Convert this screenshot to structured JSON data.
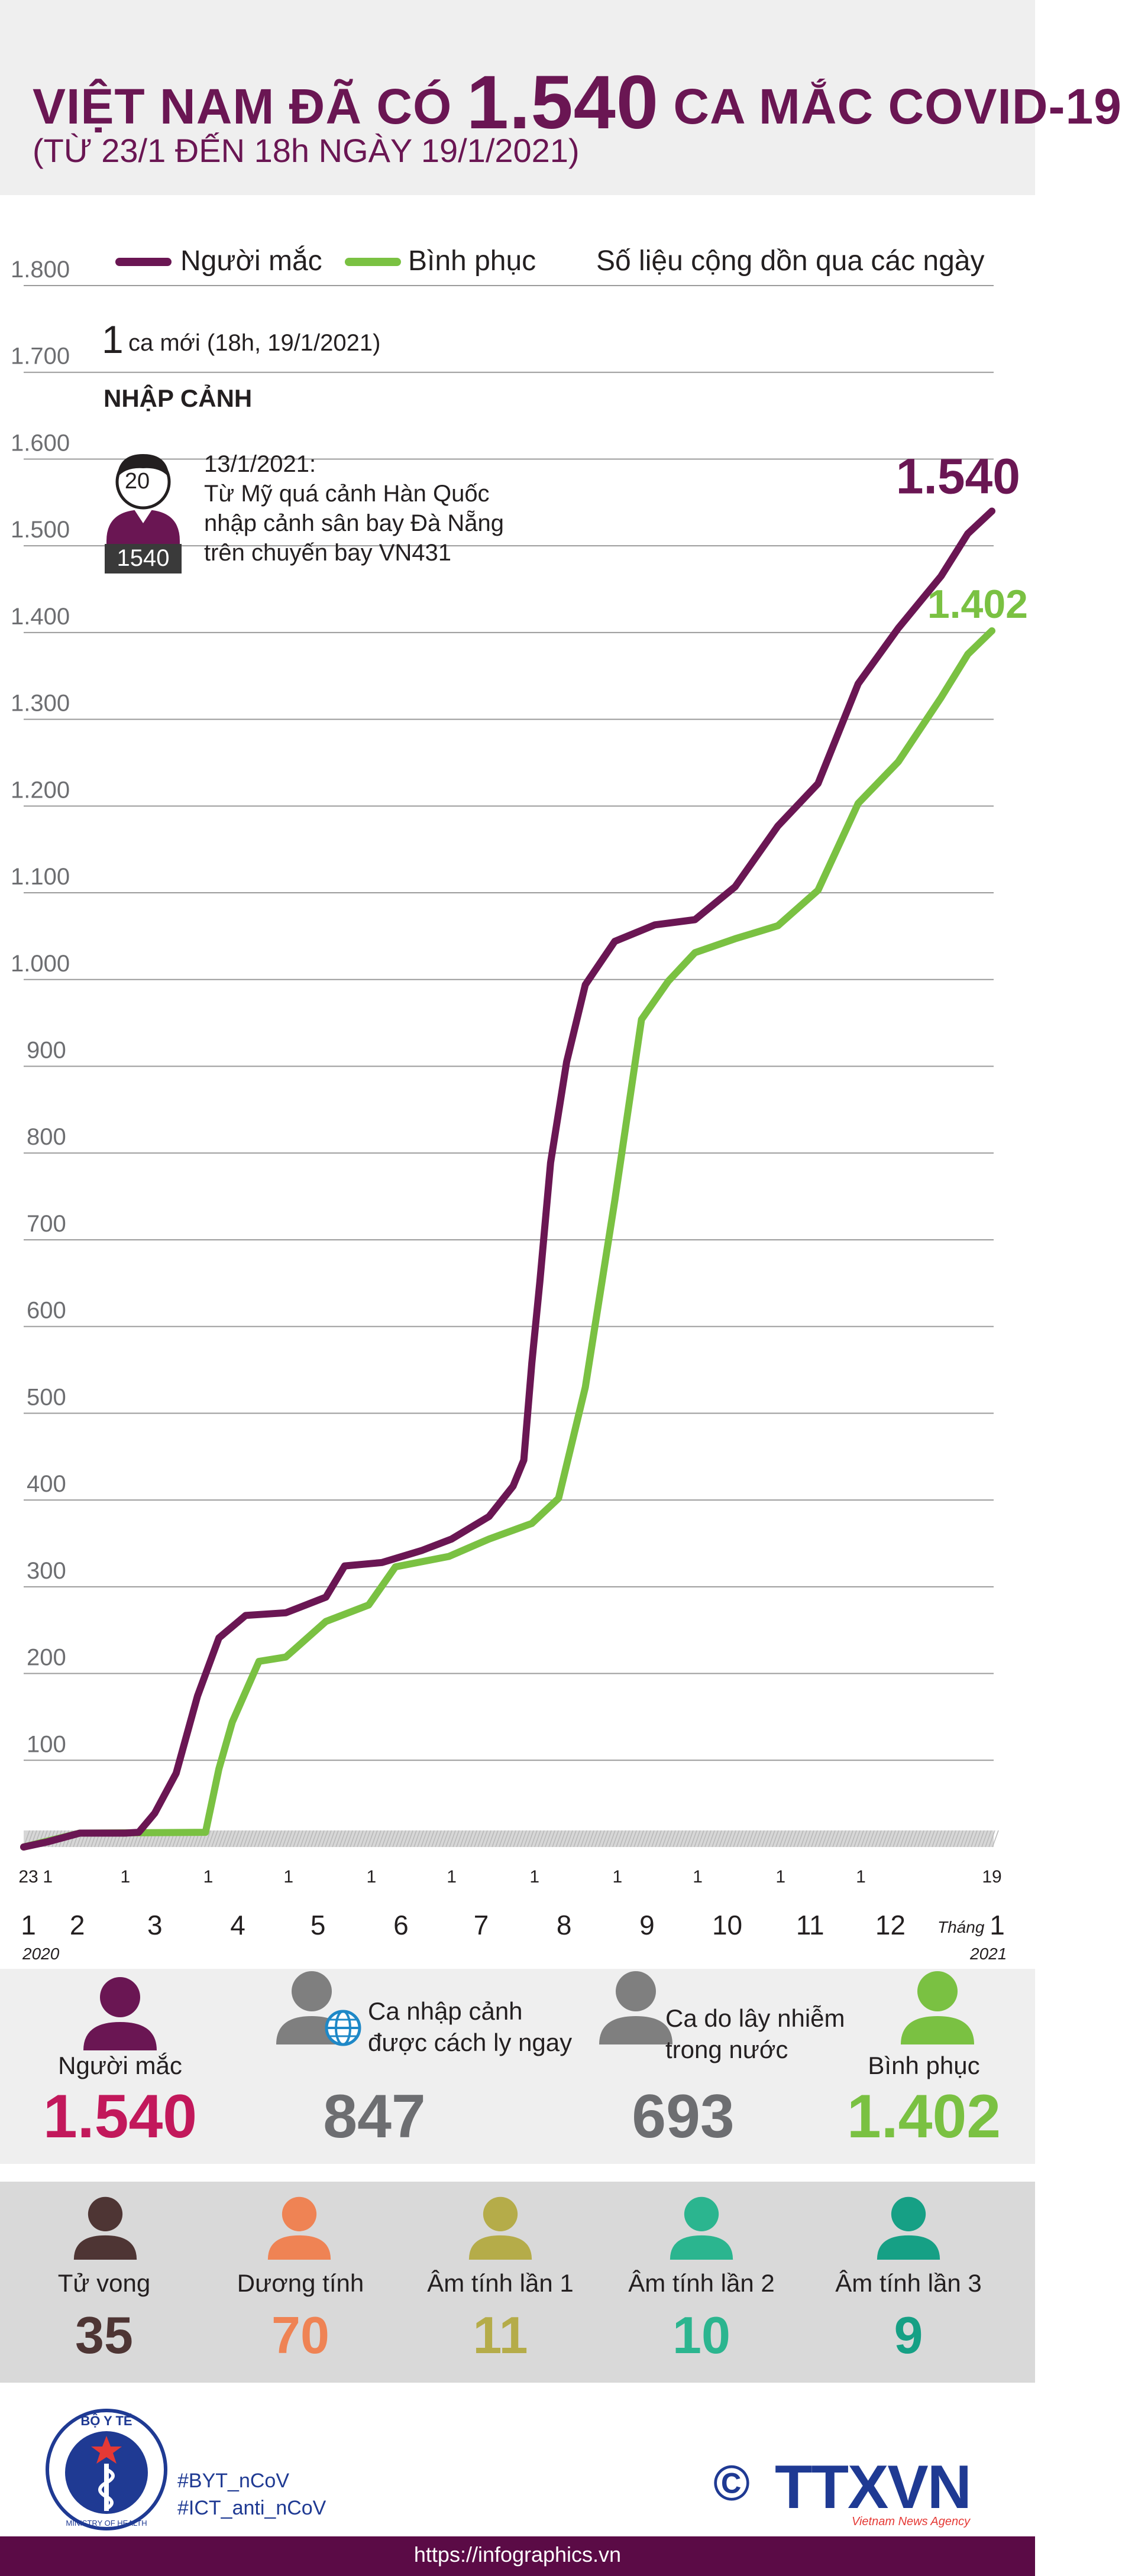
{
  "header": {
    "title_pre": "VIỆT NAM ĐÃ CÓ",
    "title_num": "1.540",
    "title_post": "CA MẮC COVID-19",
    "subtitle": "(TỪ 23/1 ĐẾN 18h NGÀY 19/1/2021)"
  },
  "legend": {
    "cases": "Người mắc",
    "recovered": "Bình phục",
    "note": "Số liệu cộng dồn qua các ngày"
  },
  "colors": {
    "cases": "#6a1653",
    "recovered": "#7ac142",
    "gray": "#7f7f7f",
    "magenta": "#c2185b",
    "deaths": "#4e3534",
    "positive": "#ef8354",
    "neg1": "#b5ac49",
    "neg2": "#2bb58f",
    "neg3": "#16a085"
  },
  "annotation": {
    "new_count": "1",
    "new_text": "ca mới (18h, 19/1/2021)",
    "category": "NHẬP CẢNH",
    "patient_age": "20",
    "patient_id": "1540",
    "date": "13/1/2021:",
    "line1": "Từ Mỹ quá cảnh Hàn Quốc",
    "line2": "nhập cảnh sân bay Đà Nẵng",
    "line3": "trên chuyến bay VN431"
  },
  "chart_data": {
    "type": "line",
    "ylim": [
      0,
      1800
    ],
    "yticks": [
      "1.800",
      "1.700",
      "1.600",
      "1.500",
      "1.400",
      "1.300",
      "1.200",
      "1.100",
      "1.000",
      "900",
      "800",
      "700",
      "600",
      "500",
      "400",
      "300",
      "200",
      "100"
    ],
    "x_day_labels": [
      "23",
      "1",
      "1",
      "1",
      "1",
      "1",
      "1",
      "1",
      "1",
      "1",
      "1",
      "1",
      "19"
    ],
    "x_month_labels": [
      "1",
      "2",
      "3",
      "4",
      "5",
      "6",
      "7",
      "8",
      "9",
      "10",
      "11",
      "12",
      "1"
    ],
    "x_year_start": "2020",
    "x_year_end": "2021",
    "x_month_word": "Tháng",
    "end_label_cases": "1.540",
    "end_label_recovered": "1.402",
    "series": [
      {
        "name": "Người mắc",
        "points": [
          [
            "2020-01-23",
            0
          ],
          [
            "2020-02-01",
            6
          ],
          [
            "2020-02-13",
            16
          ],
          [
            "2020-03-01",
            16
          ],
          [
            "2020-03-06",
            17
          ],
          [
            "2020-03-12",
            39
          ],
          [
            "2020-03-20",
            85
          ],
          [
            "2020-03-28",
            174
          ],
          [
            "2020-04-05",
            241
          ],
          [
            "2020-04-15",
            267
          ],
          [
            "2020-04-30",
            270
          ],
          [
            "2020-05-15",
            288
          ],
          [
            "2020-05-22",
            324
          ],
          [
            "2020-06-05",
            328
          ],
          [
            "2020-06-20",
            342
          ],
          [
            "2020-07-01",
            355
          ],
          [
            "2020-07-15",
            381
          ],
          [
            "2020-07-24",
            416
          ],
          [
            "2020-07-28",
            446
          ],
          [
            "2020-07-31",
            558
          ],
          [
            "2020-08-03",
            652
          ],
          [
            "2020-08-07",
            789
          ],
          [
            "2020-08-13",
            905
          ],
          [
            "2020-08-20",
            994
          ],
          [
            "2020-08-31",
            1044
          ],
          [
            "2020-09-15",
            1063
          ],
          [
            "2020-09-30",
            1069
          ],
          [
            "2020-10-15",
            1107
          ],
          [
            "2020-10-31",
            1177
          ],
          [
            "2020-11-15",
            1226
          ],
          [
            "2020-11-30",
            1341
          ],
          [
            "2020-12-15",
            1405
          ],
          [
            "2020-12-31",
            1465
          ],
          [
            "2021-01-10",
            1514
          ],
          [
            "2021-01-19",
            1540
          ]
        ]
      },
      {
        "name": "Bình phục",
        "points": [
          [
            "2020-01-23",
            0
          ],
          [
            "2020-02-13",
            16
          ],
          [
            "2020-03-31",
            17
          ],
          [
            "2020-04-05",
            90
          ],
          [
            "2020-04-10",
            144
          ],
          [
            "2020-04-20",
            214
          ],
          [
            "2020-04-30",
            219
          ],
          [
            "2020-05-15",
            260
          ],
          [
            "2020-05-31",
            279
          ],
          [
            "2020-06-10",
            323
          ],
          [
            "2020-06-30",
            335
          ],
          [
            "2020-07-15",
            355
          ],
          [
            "2020-07-31",
            373
          ],
          [
            "2020-08-10",
            402
          ],
          [
            "2020-08-20",
            530
          ],
          [
            "2020-08-31",
            745
          ],
          [
            "2020-09-10",
            954
          ],
          [
            "2020-09-20",
            998
          ],
          [
            "2020-09-30",
            1031
          ],
          [
            "2020-10-15",
            1047
          ],
          [
            "2020-10-31",
            1062
          ],
          [
            "2020-11-15",
            1103
          ],
          [
            "2020-11-30",
            1203
          ],
          [
            "2020-12-15",
            1251
          ],
          [
            "2020-12-31",
            1325
          ],
          [
            "2021-01-10",
            1375
          ],
          [
            "2021-01-19",
            1402
          ]
        ]
      }
    ]
  },
  "stats_row1": [
    {
      "label": "Người mắc",
      "value": "1.540"
    },
    {
      "label_line1": "Ca nhập cảnh",
      "label_line2": "được cách ly ngay",
      "value": "847"
    },
    {
      "label_line1": "Ca do lây nhiễm",
      "label_line2": "trong nước",
      "value": "693"
    },
    {
      "label": "Bình phục",
      "value": "1.402"
    }
  ],
  "stats_row2": [
    {
      "label": "Tử vong",
      "value": "35"
    },
    {
      "label": "Dương tính",
      "value": "70"
    },
    {
      "label": "Âm tính lần 1",
      "value": "11"
    },
    {
      "label": "Âm tính lần 2",
      "value": "10"
    },
    {
      "label": "Âm tính lần 3",
      "value": "9"
    }
  ],
  "footer": {
    "byt_text": "BỘ Y TẾ",
    "byt_subtext": "MINISTRY OF HEALTH",
    "hashtag1": "#BYT_nCoV",
    "hashtag2": "#ICT_anti_nCoV",
    "ttx_logo": "TTXVN",
    "ttx_sub": "Vietnam News Agency",
    "copyright": "©",
    "url": "https://infographics.vn"
  }
}
